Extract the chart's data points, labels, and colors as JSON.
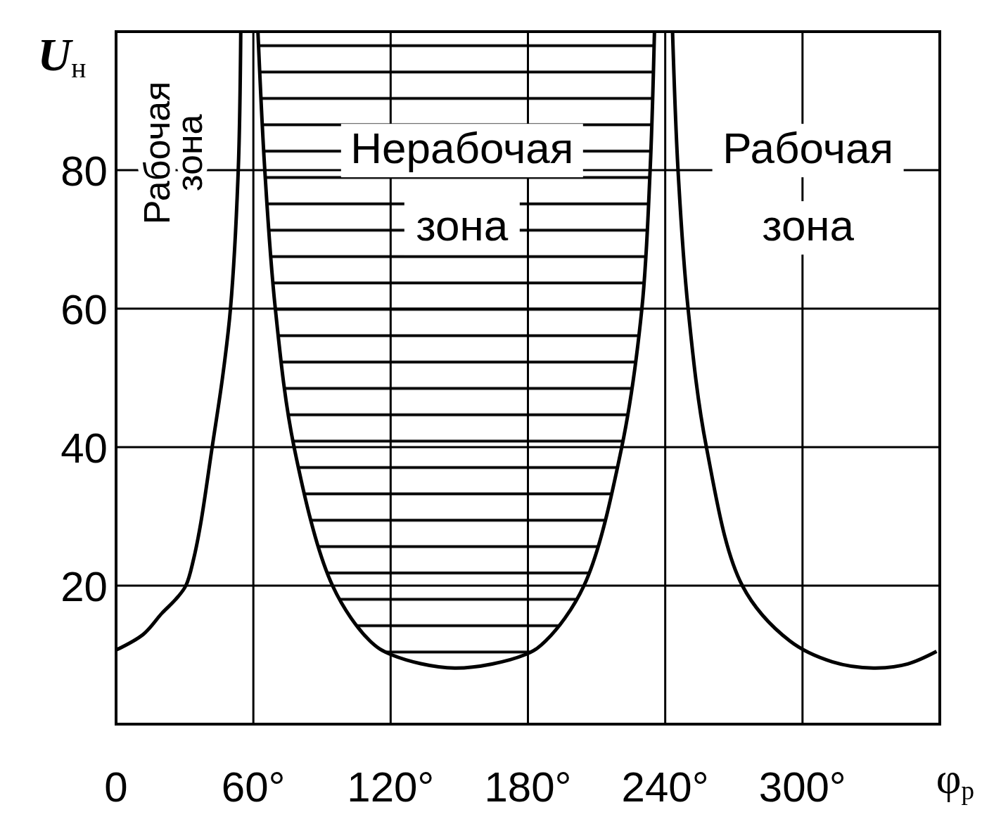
{
  "chart_data": {
    "type": "line",
    "xlabel": "φ$_{р}$",
    "ylabel": "U$_{н}$",
    "xlim": [
      0,
      360
    ],
    "ylim": [
      0,
      100
    ],
    "xticks": [
      {
        "value": 0,
        "label": "0"
      },
      {
        "value": 60,
        "label": "60°"
      },
      {
        "value": 120,
        "label": "120°"
      },
      {
        "value": 180,
        "label": "180°"
      },
      {
        "value": 240,
        "label": "240°"
      },
      {
        "value": 300,
        "label": "300°"
      },
      {
        "value": 360,
        "label": null
      }
    ],
    "yticks": [
      20,
      40,
      60,
      80,
      {
        "value": 100,
        "label": null
      }
    ],
    "grid": true,
    "marker": "none",
    "line_style": "solid",
    "annotations": [
      "Рабочая зона",
      "Нерабочая зона",
      "Рабочая зона"
    ],
    "series": [
      {
        "color": "#000000",
        "x": [
          0,
          12,
          20,
          26,
          30.5,
          34,
          37,
          42,
          46.5,
          50,
          53.4,
          54.5
        ],
        "values": [
          10.7,
          13,
          16,
          18,
          20,
          24,
          29,
          40,
          50,
          60,
          80,
          100
        ]
      },
      {
        "color": "#000000",
        "x": [
          62,
          65,
          69.6,
          77.8,
          94.6,
          111,
          120.5,
          148,
          178.5,
          187.7,
          204.5,
          221,
          229.8,
          233.4,
          235.3
        ],
        "values": [
          100,
          80,
          60,
          40,
          20,
          12,
          10,
          8.1,
          10,
          12,
          20,
          40,
          60,
          80,
          100
        ]
      },
      {
        "color": "#000000",
        "x": [
          243.2,
          245.6,
          250,
          258,
          273.7,
          294.5,
          313,
          331,
          346,
          358.6
        ],
        "values": [
          100,
          80,
          60,
          40,
          20,
          12,
          9,
          8.1,
          8.7,
          10.5
        ]
      }
    ]
  }
}
